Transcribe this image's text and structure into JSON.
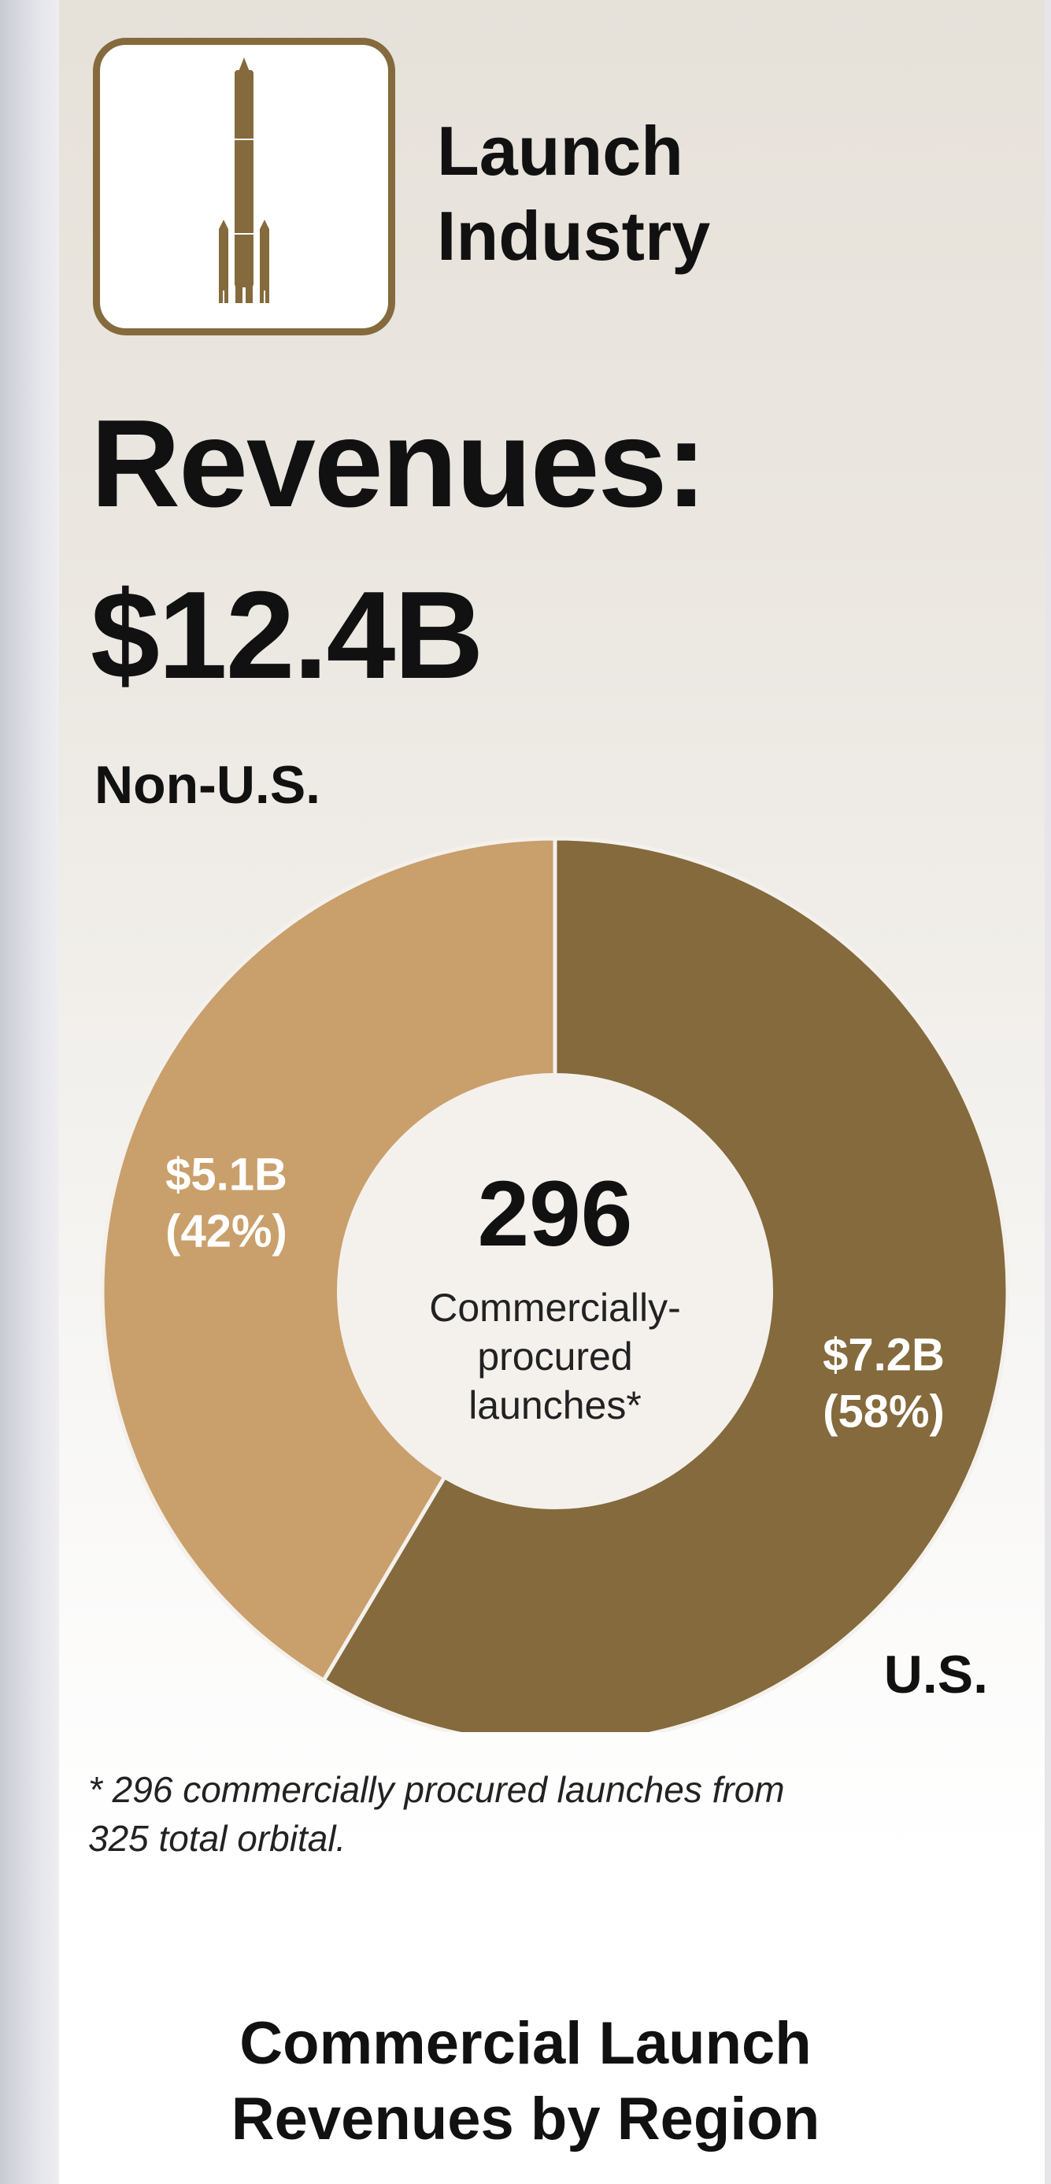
{
  "header": {
    "title_line1": "Launch",
    "title_line2": "Industry",
    "icon": "rocket-icon"
  },
  "revenue": {
    "label": "Revenues:",
    "total": "$12.4B"
  },
  "chart_data": {
    "type": "pie",
    "subtype": "donut",
    "title": "Commercial Launch Revenues by Region",
    "total_label": "$12.4B",
    "segments": [
      {
        "name": "U.S.",
        "value": 7.2,
        "percent": 58,
        "label": "$7.2B",
        "percent_label": "(58%)",
        "color": "#846a3c"
      },
      {
        "name": "Non-U.S.",
        "value": 5.1,
        "percent": 42,
        "label": "$5.1B",
        "percent_label": "(42%)",
        "color": "#c99f6b"
      }
    ],
    "center": {
      "value": "296",
      "line1": "Commercially-",
      "line2": "procured",
      "line3": "launches*"
    },
    "footnote_line1": "* 296 commercially procured launches from",
    "footnote_line2": "325 total orbital."
  },
  "subtitle": {
    "line1": "Commercial Launch",
    "line2": "Revenues by Region"
  },
  "colors": {
    "accent": "#846a3c",
    "accent_light": "#c99f6b",
    "center": "#f4f1ed",
    "text": "#111111"
  }
}
